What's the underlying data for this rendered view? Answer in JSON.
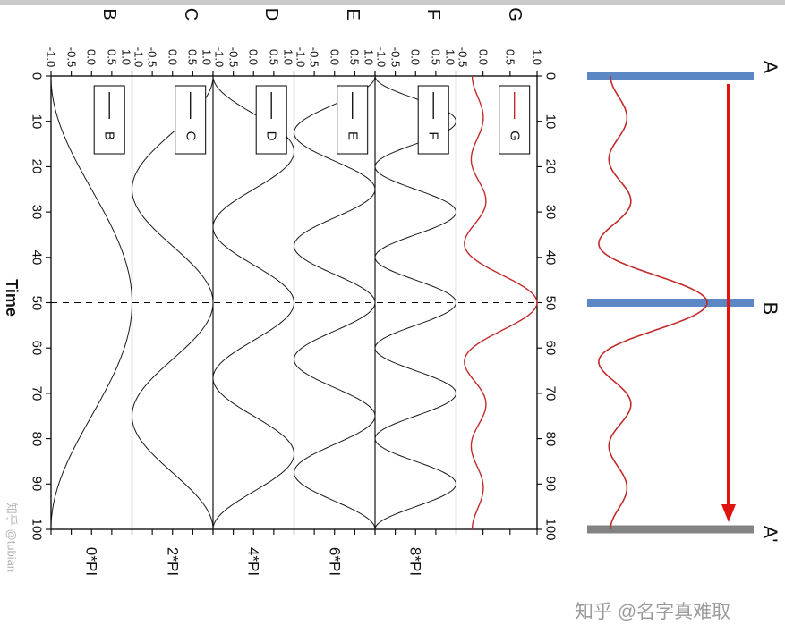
{
  "watermarks": {
    "left": "知乎 @tubian",
    "bottom_right": "知乎 @名字真难取"
  },
  "chart_data": {
    "type": "line",
    "orientation": "figure_rotated_90deg_clockwise",
    "title": "",
    "xlabel": "Time",
    "x_range": [
      0,
      100
    ],
    "x_ticks": [
      0,
      10,
      20,
      30,
      40,
      50,
      60,
      70,
      80,
      90,
      100
    ],
    "dashed_line_at_time": 50,
    "series_formula": "value(t) = cos(2*pi*harmonic*(t-50)/100); panel G = mean of panels B..F (wave packet peaked at t=50)",
    "panels": [
      {
        "letter": "B",
        "legend": "B",
        "phase_label": "0*PI",
        "harmonic": 1,
        "ylim": [
          -1,
          1
        ],
        "y_ticks": [
          -1,
          -0.5,
          0,
          0.5,
          1
        ],
        "color": "#1a1a1a"
      },
      {
        "letter": "C",
        "legend": "C",
        "phase_label": "2*PI",
        "harmonic": 2,
        "ylim": [
          -1,
          1
        ],
        "y_ticks": [
          -1,
          -0.5,
          0,
          0.5,
          1
        ],
        "color": "#1a1a1a"
      },
      {
        "letter": "D",
        "legend": "D",
        "phase_label": "4*PI",
        "harmonic": 3,
        "ylim": [
          -1,
          1
        ],
        "y_ticks": [
          -1,
          -0.5,
          0,
          0.5,
          1
        ],
        "color": "#1a1a1a"
      },
      {
        "letter": "E",
        "legend": "E",
        "phase_label": "6*PI",
        "harmonic": 4,
        "ylim": [
          -1,
          1
        ],
        "y_ticks": [
          -1,
          -0.5,
          0,
          0.5,
          1
        ],
        "color": "#1a1a1a"
      },
      {
        "letter": "F",
        "legend": "F",
        "phase_label": "8*PI",
        "harmonic": 5,
        "ylim": [
          -1,
          1
        ],
        "y_ticks": [
          -1,
          -0.5,
          0,
          0.5,
          1
        ],
        "color": "#1a1a1a"
      },
      {
        "letter": "G",
        "legend": "G",
        "phase_label": "",
        "harmonic": 0,
        "ylim": [
          -0.5,
          1
        ],
        "y_ticks": [
          -0.5,
          0,
          0.5,
          1
        ],
        "color": "#c22a2a"
      }
    ],
    "sample_points": {
      "t": [
        0,
        10,
        20,
        30,
        40,
        50,
        60,
        70,
        80,
        90,
        100
      ],
      "B": [
        -1,
        -0.81,
        -0.31,
        0.31,
        0.81,
        1,
        0.81,
        0.31,
        -0.31,
        -0.81,
        -1
      ],
      "C": [
        1,
        0.31,
        -0.81,
        -0.81,
        0.31,
        1,
        0.31,
        -0.81,
        -0.81,
        0.31,
        1
      ],
      "D": [
        -1,
        0.31,
        0.81,
        -0.81,
        -0.31,
        1,
        -0.31,
        -0.81,
        0.81,
        0.31,
        -1
      ],
      "E": [
        1,
        -0.81,
        0.31,
        0.31,
        -0.81,
        1,
        -0.81,
        0.31,
        0.31,
        -0.81,
        1
      ],
      "F": [
        -1,
        1,
        -1,
        1,
        -1,
        1,
        -1,
        1,
        -1,
        1,
        -1
      ],
      "G": [
        -0.2,
        0,
        -0.2,
        0,
        -0.2,
        1,
        -0.2,
        0,
        -0.2,
        0,
        -0.2
      ]
    },
    "strip": {
      "wave": "same as panel G",
      "wave_color": "#c22a2a",
      "arrow_color": "#e01313",
      "arrow_direction": "from time 0 to time 100",
      "points": [
        {
          "label": "A",
          "time": 0,
          "bar_color": "#5b87c4"
        },
        {
          "label": "B",
          "time": 50,
          "bar_color": "#5b87c4"
        },
        {
          "label": "A'",
          "time": 100,
          "bar_color": "#838383"
        }
      ]
    }
  }
}
